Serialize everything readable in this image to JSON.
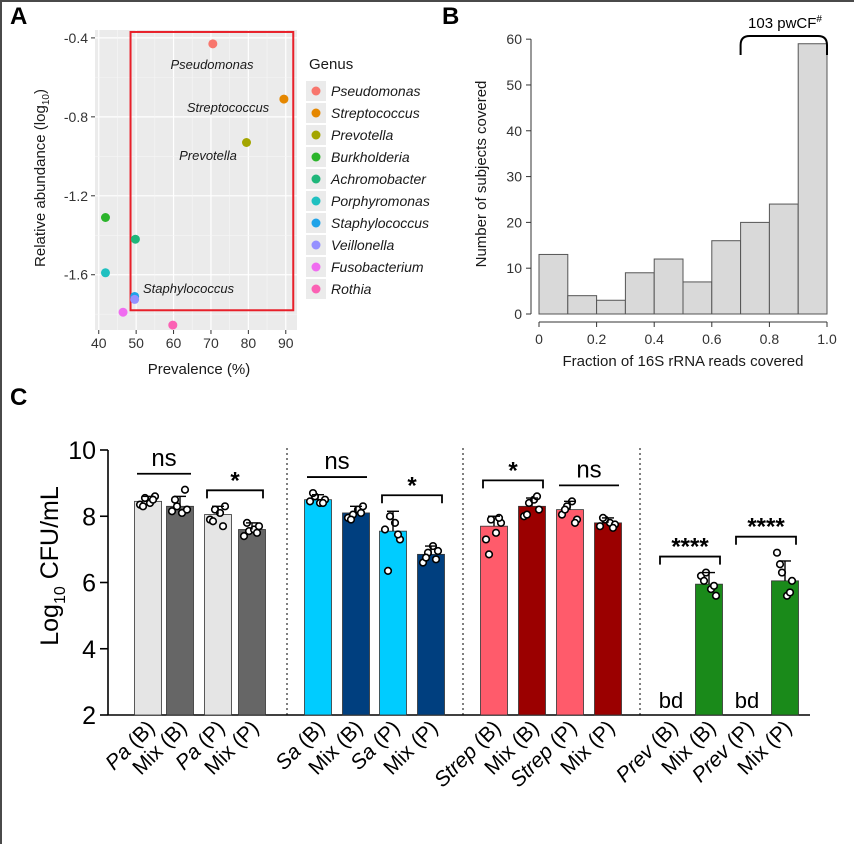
{
  "panels": {
    "A": {
      "letter": "A",
      "xlabel": "Prevalence (%)",
      "ylabel_main": "Relative abundance (log",
      "ylabel_sub": "10",
      "ylabel_end": ")",
      "xticks": [
        "40",
        "50",
        "60",
        "70",
        "80",
        "90"
      ],
      "yticks": [
        "-0.4",
        "-0.8",
        "-1.2",
        "-1.6"
      ],
      "legend_title": "Genus",
      "legend": [
        {
          "name": "Pseudomonas",
          "color": "#f8766d"
        },
        {
          "name": "Streptococcus",
          "color": "#e58700"
        },
        {
          "name": "Prevotella",
          "color": "#a3a500"
        },
        {
          "name": "Burkholderia",
          "color": "#2bb42b"
        },
        {
          "name": "Achromobacter",
          "color": "#1fb67a"
        },
        {
          "name": "Porphyromonas",
          "color": "#1fc0c0"
        },
        {
          "name": "Staphylococcus",
          "color": "#1fa3e8"
        },
        {
          "name": "Veillonella",
          "color": "#9590ff"
        },
        {
          "name": "Fusobacterium",
          "color": "#f06cf0"
        },
        {
          "name": "Rothia",
          "color": "#fb61b4"
        }
      ],
      "annotations": {
        "pseudomonas": "Pseudomonas",
        "streptococcus": "Streptococcus",
        "prevotella": "Prevotella",
        "staphylococcus": "Staphylococcus"
      }
    },
    "B": {
      "letter": "B",
      "xlabel": "Fraction of 16S rRNA reads covered",
      "ylabel": "Number of subjects covered",
      "xticks": [
        "0",
        "0.2",
        "0.4",
        "0.6",
        "0.8",
        "1.0"
      ],
      "yticks": [
        "0",
        "10",
        "20",
        "30",
        "40",
        "50",
        "60"
      ],
      "bracket_label": "103 pwCF",
      "bracket_sup": "#"
    },
    "C": {
      "letter": "C",
      "ylabel_main": "Log",
      "ylabel_sub": "10",
      "ylabel_end": " CFU/mL",
      "yticks": [
        "2",
        "4",
        "6",
        "8",
        "10"
      ],
      "xlabels": [
        {
          "it": "Pa",
          "rest": " (B)"
        },
        {
          "it": "",
          "rest": "Mix (B)"
        },
        {
          "it": "Pa",
          "rest": " (P)"
        },
        {
          "it": "",
          "rest": "Mix (P)"
        },
        {
          "it": "Sa",
          "rest": " (B)"
        },
        {
          "it": "",
          "rest": "Mix (B)"
        },
        {
          "it": "Sa",
          "rest": " (P)"
        },
        {
          "it": "",
          "rest": "Mix (P)"
        },
        {
          "it": "Strep",
          "rest": " (B)"
        },
        {
          "it": "",
          "rest": "Mix (B)"
        },
        {
          "it": "Strep",
          "rest": " (P)"
        },
        {
          "it": "",
          "rest": "Mix (P)"
        },
        {
          "it": "Prev",
          "rest": " (B)"
        },
        {
          "it": "",
          "rest": "Mix (B)"
        },
        {
          "it": "Prev",
          "rest": " (P)"
        },
        {
          "it": "",
          "rest": "Mix (P)"
        }
      ],
      "bd_label": "bd"
    }
  },
  "chart_data": [
    {
      "type": "scatter",
      "title": "A",
      "xlabel": "Prevalence (%)",
      "ylabel": "Relative abundance (log10)",
      "xlim": [
        39,
        93
      ],
      "ylim": [
        -1.88,
        -0.36
      ],
      "highlight_box": {
        "x": [
          48.5,
          92
        ],
        "y": [
          -1.78,
          -0.37
        ]
      },
      "points": [
        {
          "genus": "Pseudomonas",
          "x": 70.5,
          "y": -0.43
        },
        {
          "genus": "Streptococcus",
          "x": 89.5,
          "y": -0.71
        },
        {
          "genus": "Prevotella",
          "x": 79.5,
          "y": -0.93
        },
        {
          "genus": "Burkholderia",
          "x": 41.8,
          "y": -1.31
        },
        {
          "genus": "Achromobacter",
          "x": 49.8,
          "y": -1.42
        },
        {
          "genus": "Porphyromonas",
          "x": 41.8,
          "y": -1.59
        },
        {
          "genus": "Staphylococcus",
          "x": 49.6,
          "y": -1.71
        },
        {
          "genus": "Veillonella",
          "x": 49.6,
          "y": -1.725
        },
        {
          "genus": "Fusobacterium",
          "x": 46.5,
          "y": -1.79
        },
        {
          "genus": "Rothia",
          "x": 59.8,
          "y": -1.855
        }
      ]
    },
    {
      "type": "bar",
      "title": "B",
      "xlabel": "Fraction of 16S rRNA reads covered",
      "ylabel": "Number of subjects covered",
      "bin_edges": [
        0,
        0.1,
        0.2,
        0.3,
        0.4,
        0.5,
        0.6,
        0.7,
        0.8,
        0.9,
        1.0
      ],
      "values": [
        13,
        4,
        3,
        9,
        12,
        7,
        16,
        20,
        24,
        59
      ],
      "xlim": [
        0,
        1.0
      ],
      "ylim": [
        0,
        62
      ],
      "bracket": {
        "x": [
          0.7,
          1.0
        ],
        "label": "103 pwCF#"
      }
    },
    {
      "type": "bar",
      "title": "C",
      "ylabel": "Log10 CFU/mL",
      "ylim": [
        2,
        10
      ],
      "categories": [
        "Pa (B)",
        "Mix (B)",
        "Pa (P)",
        "Mix (P)",
        "Sa (B)",
        "Mix (B)",
        "Sa (P)",
        "Mix (P)",
        "Strep (B)",
        "Mix (B)",
        "Strep (P)",
        "Mix (P)",
        "Prev (B)",
        "Mix (B)",
        "Prev (P)",
        "Mix (P)"
      ],
      "bars": [
        {
          "mean": 8.45,
          "sd": 0.15,
          "color": "#e5e5e5",
          "points": [
            8.35,
            8.55,
            8.4,
            8.6,
            8.3,
            8.5
          ]
        },
        {
          "mean": 8.3,
          "sd": 0.3,
          "color": "#666666",
          "points": [
            8.15,
            8.3,
            8.1,
            8.2,
            8.5,
            8.8
          ]
        },
        {
          "mean": 8.05,
          "sd": 0.25,
          "color": "#e5e5e5",
          "points": [
            7.9,
            8.2,
            8.1,
            8.3,
            7.85,
            7.7
          ]
        },
        {
          "mean": 7.6,
          "sd": 0.2,
          "color": "#666666",
          "points": [
            7.4,
            7.55,
            7.6,
            7.7,
            7.8,
            7.5
          ]
        },
        {
          "mean": 8.5,
          "sd": 0.15,
          "color": "#00ccff",
          "points": [
            8.45,
            8.6,
            8.4,
            8.5,
            8.7,
            8.4
          ]
        },
        {
          "mean": 8.1,
          "sd": 0.2,
          "color": "#003f7f",
          "points": [
            7.95,
            8.05,
            8.2,
            8.3,
            7.9,
            8.1
          ]
        },
        {
          "mean": 7.55,
          "sd": 0.6,
          "color": "#00ccff",
          "points": [
            7.6,
            8.0,
            7.8,
            7.3,
            6.35,
            7.45
          ]
        },
        {
          "mean": 6.85,
          "sd": 0.25,
          "color": "#003f7f",
          "points": [
            6.6,
            6.9,
            7.1,
            6.95,
            6.75,
            6.7
          ]
        },
        {
          "mean": 7.7,
          "sd": 0.3,
          "color": "#ff5b6b",
          "points": [
            7.3,
            7.9,
            7.5,
            7.8,
            6.85,
            7.95
          ]
        },
        {
          "mean": 8.3,
          "sd": 0.25,
          "color": "#9b0000",
          "points": [
            8.0,
            8.4,
            8.5,
            8.2,
            8.05,
            8.6
          ]
        },
        {
          "mean": 8.2,
          "sd": 0.25,
          "color": "#ff5b6b",
          "points": [
            8.05,
            8.3,
            8.45,
            7.9,
            8.2,
            7.8
          ]
        },
        {
          "mean": 7.8,
          "sd": 0.15,
          "color": "#9b0000",
          "points": [
            7.7,
            7.9,
            7.8,
            7.75,
            7.95,
            7.65
          ]
        },
        {
          "mean": null,
          "sd": null,
          "color": "#1a8a1a",
          "points": [],
          "label": "bd"
        },
        {
          "mean": 5.95,
          "sd": 0.35,
          "color": "#1a8a1a",
          "points": [
            6.2,
            6.3,
            5.8,
            5.6,
            6.05,
            5.9
          ]
        },
        {
          "mean": null,
          "sd": null,
          "color": "#1a8a1a",
          "points": [],
          "label": "bd"
        },
        {
          "mean": 6.05,
          "sd": 0.6,
          "color": "#1a8a1a",
          "points": [
            6.9,
            6.3,
            5.6,
            6.05,
            6.55,
            5.7
          ]
        }
      ],
      "comparisons": [
        {
          "pair": [
            0,
            1
          ],
          "label": "ns"
        },
        {
          "pair": [
            2,
            3
          ],
          "label": "*"
        },
        {
          "pair": [
            4,
            5
          ],
          "label": "ns"
        },
        {
          "pair": [
            6,
            7
          ],
          "label": "*"
        },
        {
          "pair": [
            8,
            9
          ],
          "label": "*"
        },
        {
          "pair": [
            10,
            11
          ],
          "label": "ns"
        },
        {
          "pair": [
            12,
            13
          ],
          "label": "****"
        },
        {
          "pair": [
            14,
            15
          ],
          "label": "****"
        }
      ]
    }
  ]
}
